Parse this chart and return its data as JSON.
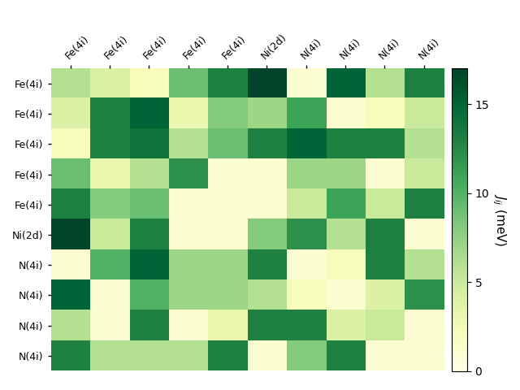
{
  "labels": [
    "Fe(4i)",
    "Fe(4i)",
    "Fe(4i)",
    "Fe(4i)",
    "Fe(4i)",
    "Ni(2d)",
    "N(4i)",
    "N(4i)",
    "N(4i)",
    "N(4i)"
  ],
  "matrix": [
    [
      6,
      4,
      2,
      9,
      13,
      17,
      1,
      15,
      6,
      13
    ],
    [
      4,
      13,
      15,
      3,
      8,
      7,
      11,
      1,
      2,
      5
    ],
    [
      2,
      13,
      14,
      6,
      9,
      13,
      15,
      13,
      13,
      6
    ],
    [
      9,
      3,
      6,
      12,
      1,
      1,
      7,
      7,
      1,
      5
    ],
    [
      13,
      8,
      9,
      1,
      1,
      1,
      5,
      11,
      5,
      13
    ],
    [
      17,
      5,
      13,
      1,
      1,
      8,
      12,
      6,
      13,
      1
    ],
    [
      1,
      10,
      15,
      7,
      7,
      13,
      1,
      2,
      13,
      6
    ],
    [
      15,
      1,
      10,
      7,
      7,
      6,
      2,
      1,
      4,
      12
    ],
    [
      6,
      1,
      13,
      1,
      3,
      13,
      13,
      4,
      5,
      1
    ],
    [
      13,
      6,
      6,
      6,
      13,
      1,
      8,
      13,
      1,
      1
    ]
  ],
  "vmin": 0,
  "vmax": 17,
  "colormap": "YlGn",
  "colorbar_label": "$J_{ij}$ (meV)",
  "colorbar_ticks": [
    0,
    5,
    10,
    15
  ],
  "figsize": [
    6.4,
    4.8
  ],
  "dpi": 100
}
